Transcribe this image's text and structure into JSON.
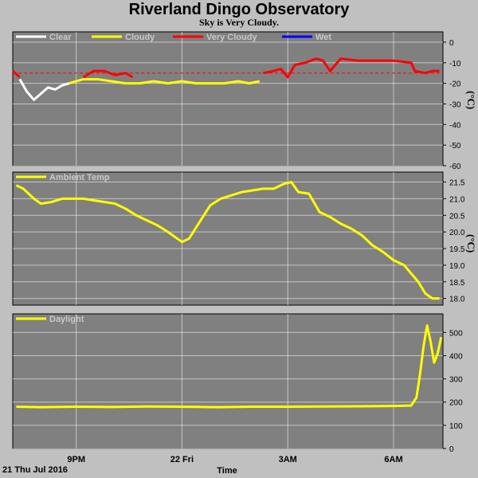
{
  "header": {
    "title": "Riverland Dingo Observatory",
    "subtitle": "Sky is Very Cloudy."
  },
  "footer": {
    "date_label": "21 Thu Jul 2016",
    "xlabel": "Time"
  },
  "colors": {
    "background": "#c0c0c0",
    "plot_bg": "#808080",
    "grid": "#ffffff",
    "clear": "#ffffff",
    "cloudy": "#ffff00",
    "very_cloudy": "#ff0000",
    "wet": "#0000ff",
    "threshold_line": "#ff0000"
  },
  "chart_data": [
    {
      "type": "line",
      "ylabel": "(°C)",
      "ylim": [
        -60,
        5
      ],
      "yticks": [
        0,
        -10,
        -20,
        -30,
        -40,
        -50,
        -60
      ],
      "xticks": [
        "9PM",
        "22 Fri",
        "3AM",
        "6AM"
      ],
      "xtick_hours": [
        21,
        24,
        27,
        30
      ],
      "xlim": [
        19.2,
        31.4
      ],
      "grid": true,
      "legend_position": "top-left",
      "thresholds": [
        {
          "y": -15,
          "style": "dashed",
          "color": "#ff0000"
        }
      ],
      "series": [
        {
          "name": "Clear",
          "color": "#ffffff",
          "x": [
            19.4,
            19.6,
            19.8,
            20.0,
            20.2,
            20.4,
            20.6,
            20.8
          ],
          "y": [
            -18,
            -24,
            -28,
            -25,
            -22,
            -23,
            -21,
            -20
          ]
        },
        {
          "name": "Cloudy",
          "color": "#ffff00",
          "x": [
            20.8,
            21.2,
            21.6,
            22.0,
            22.4,
            22.8,
            23.2,
            23.6,
            24.0,
            24.4,
            24.8,
            25.2,
            25.6,
            25.9,
            26.2
          ],
          "y": [
            -20,
            -18,
            -18,
            -19,
            -20,
            -20,
            -19,
            -20,
            -19,
            -20,
            -20,
            -20,
            -19,
            -20,
            -19
          ]
        },
        {
          "name": "Very Cloudy",
          "color": "#ff0000",
          "x": [
            19.2,
            19.4,
            21.2,
            21.5,
            21.8,
            22.1,
            22.4,
            22.6,
            26.3,
            26.6,
            26.8,
            27.0,
            27.2,
            27.5,
            27.8,
            28.0,
            28.2,
            28.5,
            29.0,
            29.5,
            30.0,
            30.5,
            30.6,
            30.9,
            31.1,
            31.3
          ],
          "y": [
            -14,
            -17,
            -17,
            -14,
            -14,
            -16,
            -15,
            -17,
            -15,
            -14,
            -13,
            -17,
            -11,
            -10,
            -8,
            -9,
            -14,
            -8,
            -9,
            -9,
            -9,
            -10,
            -14,
            -15,
            -14,
            -14
          ]
        },
        {
          "name": "Wet",
          "color": "#0000ff",
          "x": [],
          "y": []
        }
      ]
    },
    {
      "type": "line",
      "ylabel": "(°C)",
      "ylim": [
        17.8,
        21.8
      ],
      "yticks": [
        18.0,
        18.5,
        19.0,
        19.5,
        20.0,
        20.5,
        21.0,
        21.5
      ],
      "xticks": [
        "9PM",
        "22 Fri",
        "3AM",
        "6AM"
      ],
      "xtick_hours": [
        21,
        24,
        27,
        30
      ],
      "xlim": [
        19.2,
        31.4
      ],
      "grid": true,
      "legend_position": "top-left",
      "series": [
        {
          "name": "Ambient Temp",
          "color": "#ffff00",
          "x": [
            19.3,
            19.5,
            19.8,
            20.0,
            20.3,
            20.6,
            20.9,
            21.2,
            21.5,
            21.8,
            22.1,
            22.4,
            22.7,
            23.0,
            23.3,
            23.6,
            23.8,
            24.0,
            24.2,
            24.5,
            24.8,
            25.1,
            25.4,
            25.7,
            26.0,
            26.3,
            26.6,
            26.9,
            27.1,
            27.3,
            27.6,
            27.9,
            28.2,
            28.5,
            28.8,
            29.1,
            29.4,
            29.7,
            30.0,
            30.3,
            30.5,
            30.7,
            30.9,
            31.1,
            31.3
          ],
          "y": [
            21.4,
            21.3,
            21.0,
            20.85,
            20.9,
            21.0,
            21.0,
            21.0,
            20.95,
            20.9,
            20.85,
            20.7,
            20.5,
            20.35,
            20.2,
            20.0,
            19.85,
            19.7,
            19.8,
            20.3,
            20.8,
            21.0,
            21.1,
            21.2,
            21.25,
            21.3,
            21.3,
            21.45,
            21.5,
            21.2,
            21.15,
            20.6,
            20.45,
            20.25,
            20.1,
            19.9,
            19.6,
            19.4,
            19.15,
            19.0,
            18.75,
            18.5,
            18.15,
            18.0,
            18.0
          ]
        }
      ]
    },
    {
      "type": "line",
      "ylabel": "",
      "ylim": [
        0,
        580
      ],
      "yticks": [
        0,
        100,
        200,
        300,
        400,
        500
      ],
      "xticks": [
        "9PM",
        "22 Fri",
        "3AM",
        "6AM"
      ],
      "xtick_hours": [
        21,
        24,
        27,
        30
      ],
      "xlim": [
        19.2,
        31.4
      ],
      "grid": true,
      "legend_position": "top-left",
      "series": [
        {
          "name": "Daylight",
          "color": "#ffff00",
          "x": [
            19.3,
            20.0,
            21.0,
            22.0,
            23.0,
            24.0,
            25.0,
            26.0,
            27.0,
            28.0,
            29.0,
            30.0,
            30.5,
            30.65,
            30.75,
            30.85,
            30.95,
            31.05,
            31.15,
            31.25,
            31.35
          ],
          "y": [
            180,
            178,
            180,
            179,
            181,
            180,
            178,
            180,
            180,
            181,
            182,
            183,
            185,
            220,
            320,
            440,
            530,
            460,
            370,
            410,
            480
          ]
        }
      ]
    }
  ]
}
